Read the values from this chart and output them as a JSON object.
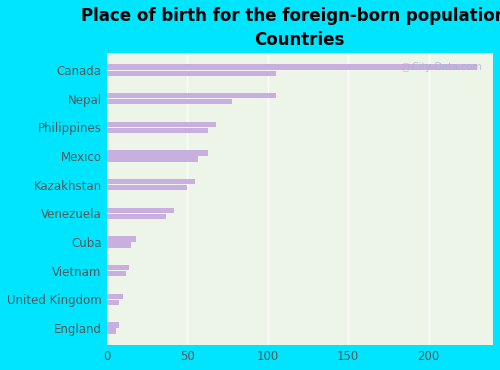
{
  "title": "Place of birth for the foreign-born population -\nCountries",
  "categories": [
    "Canada",
    "Nepal",
    "Philippines",
    "Mexico",
    "Kazakhstan",
    "Venezuela",
    "Cuba",
    "Vietnam",
    "United Kingdom",
    "England"
  ],
  "bar1_values": [
    230,
    105,
    68,
    63,
    55,
    42,
    18,
    14,
    10,
    8
  ],
  "bar2_values": [
    105,
    78,
    63,
    57,
    50,
    37,
    15,
    12,
    8,
    6
  ],
  "bar_color": "#c9aee0",
  "background_color": "#00e5ff",
  "plot_bg_color": "#edf5e8",
  "watermark": "ⓘ City-Data.com",
  "xlim": [
    0,
    240
  ],
  "xticks": [
    0,
    50,
    100,
    150,
    200
  ],
  "title_fontsize": 12,
  "tick_fontsize": 8.5
}
